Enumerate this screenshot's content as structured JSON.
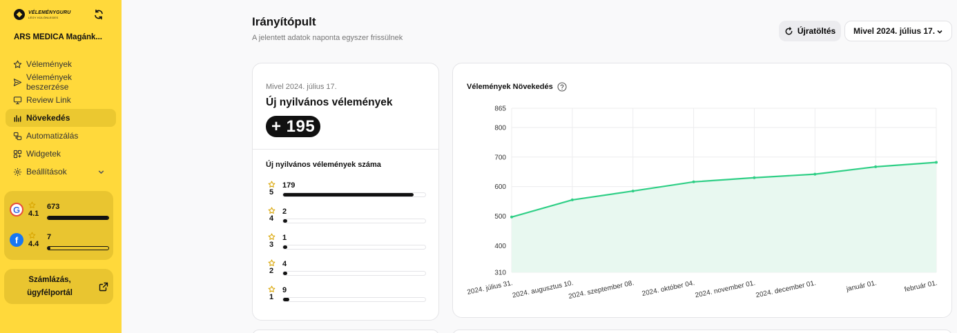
{
  "sidebar": {
    "logo_name": "VÉLEMÉNYGURU",
    "logo_sub": "LÉGY KÜLÖNLEGES",
    "company": "ARS MEDICA Magánk...",
    "items": [
      {
        "label": "Vélemények",
        "icon": "star-icon"
      },
      {
        "label": "Vélemények beszerzése",
        "icon": "send-icon"
      },
      {
        "label": "Review Link",
        "icon": "monitor-icon"
      },
      {
        "label": "Növekedés",
        "icon": "chart-bars-icon"
      },
      {
        "label": "Automatizálás",
        "icon": "automation-icon"
      },
      {
        "label": "Widgetek",
        "icon": "widgets-icon"
      },
      {
        "label": "Beállítások",
        "icon": "gear-icon"
      }
    ],
    "active_index": 3,
    "ratings": {
      "google": {
        "score": "4.1",
        "count": "673",
        "level": 1.0
      },
      "facebook": {
        "score": "4.4",
        "count": "7",
        "level": 0.04
      }
    },
    "billing": {
      "line1": "Számlázás,",
      "line2": "ügyfélportál"
    }
  },
  "header": {
    "title": "Irányítópult",
    "subtitle": "A jelentett adatok naponta egyszer frissülnek",
    "reload_label": "Újratöltés",
    "date_filter": "Mivel 2024. július 17."
  },
  "summary": {
    "since": "Mivel 2024. július 17.",
    "title": "Új nyilvános vélemények",
    "badge": "+ 195",
    "count_title": "Új nyilvános vélemények száma",
    "rows": [
      {
        "stars": "5",
        "count": "179",
        "value": 179
      },
      {
        "stars": "4",
        "count": "2",
        "value": 2
      },
      {
        "stars": "3",
        "count": "1",
        "value": 1
      },
      {
        "stars": "2",
        "count": "4",
        "value": 4
      },
      {
        "stars": "1",
        "count": "9",
        "value": 9
      }
    ],
    "max": 195
  },
  "chart_data": {
    "type": "area",
    "title": "Vélemények Növekedés",
    "categories": [
      "2024. július 31.",
      "2024. augusztus 10.",
      "2024. szeptember 08.",
      "2024. október 04.",
      "2024. november 01.",
      "2024. december 01.",
      "január 01.",
      "február 01."
    ],
    "values": [
      497,
      555,
      585,
      616,
      630,
      642,
      667,
      682
    ],
    "yticks": [
      310,
      400,
      500,
      600,
      700,
      800,
      865
    ],
    "ylim": [
      310,
      865
    ],
    "color": "#2fcf86",
    "fill": "#e8f8f0",
    "grid": true
  }
}
